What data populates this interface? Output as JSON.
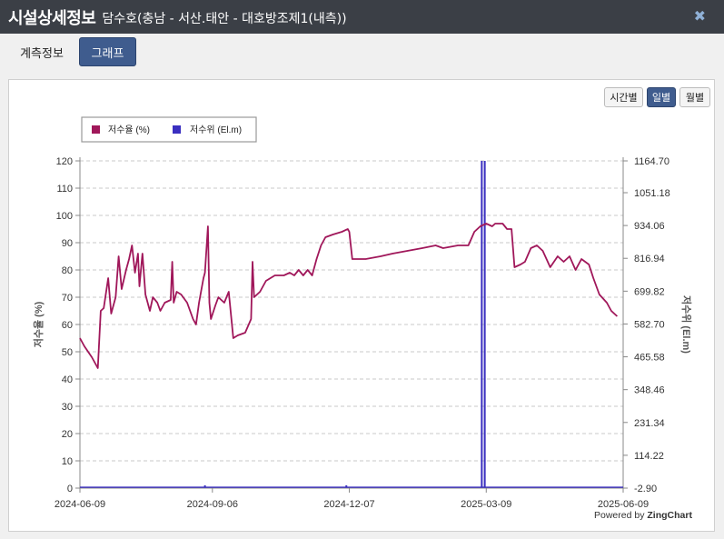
{
  "window": {
    "title": "시설상세정보",
    "subtitle": "담수호(충남 - 서산.태안 - 대호방조제1(내측))",
    "close_icon": "close-icon"
  },
  "tabs": [
    {
      "label": "계측정보",
      "active": false
    },
    {
      "label": "그래프",
      "active": true
    }
  ],
  "period_buttons": [
    {
      "label": "시간별",
      "active": false
    },
    {
      "label": "일별",
      "active": true
    },
    {
      "label": "월별",
      "active": false
    }
  ],
  "credit": {
    "prefix": "Powered by ",
    "brand": "ZingChart"
  },
  "colors": {
    "rate": "#a0175a",
    "level": "#3a2fc0"
  },
  "chart_data": {
    "type": "line",
    "legend": {
      "placement": "top-left",
      "items": [
        "저수율 (%)",
        "저수위 (El.m)"
      ]
    },
    "y_left": {
      "label": "저수율 (%)",
      "min": 0,
      "max": 120,
      "ticks": [
        "0",
        "10",
        "20",
        "30",
        "40",
        "50",
        "60",
        "70",
        "80",
        "90",
        "100",
        "110",
        "120"
      ]
    },
    "y_right": {
      "label": "저수위 (El.m)",
      "min": -2.9,
      "max": 1164.7,
      "ticks": [
        "-2.90",
        "114.22",
        "231.34",
        "348.46",
        "465.58",
        "582.70",
        "699.82",
        "816.94",
        "934.06",
        "1051.18",
        "1164.70"
      ]
    },
    "x_ticks": [
      "2024-06-09",
      "2024-09-06",
      "2024-12-07",
      "2025-03-09",
      "2025-06-09"
    ],
    "x_range": [
      "2024-06-09",
      "2025-06-09"
    ],
    "grid": true,
    "series": [
      {
        "name": "저수율 (%)",
        "axis": "left",
        "points": [
          [
            "2024-06-09",
            55
          ],
          [
            "2024-06-12",
            52
          ],
          [
            "2024-06-17",
            48
          ],
          [
            "2024-06-21",
            44
          ],
          [
            "2024-06-23",
            65
          ],
          [
            "2024-06-25",
            66
          ],
          [
            "2024-06-28",
            77
          ],
          [
            "2024-06-30",
            64
          ],
          [
            "2024-07-03",
            70
          ],
          [
            "2024-07-05",
            85
          ],
          [
            "2024-07-07",
            73
          ],
          [
            "2024-07-10",
            80
          ],
          [
            "2024-07-12",
            84
          ],
          [
            "2024-07-14",
            89
          ],
          [
            "2024-07-16",
            79
          ],
          [
            "2024-07-18",
            86
          ],
          [
            "2024-07-19",
            74
          ],
          [
            "2024-07-21",
            86
          ],
          [
            "2024-07-23",
            71
          ],
          [
            "2024-07-26",
            65
          ],
          [
            "2024-07-28",
            70
          ],
          [
            "2024-07-31",
            68
          ],
          [
            "2024-08-02",
            65
          ],
          [
            "2024-08-05",
            68
          ],
          [
            "2024-08-09",
            69
          ],
          [
            "2024-08-10",
            83
          ],
          [
            "2024-08-11",
            68
          ],
          [
            "2024-08-13",
            72
          ],
          [
            "2024-08-16",
            71
          ],
          [
            "2024-08-20",
            68
          ],
          [
            "2024-08-24",
            62
          ],
          [
            "2024-08-26",
            60
          ],
          [
            "2024-08-28",
            68
          ],
          [
            "2024-08-31",
            77
          ],
          [
            "2024-09-01",
            79
          ],
          [
            "2024-09-03",
            96
          ],
          [
            "2024-09-04",
            68
          ],
          [
            "2024-09-05",
            62
          ],
          [
            "2024-09-08",
            67
          ],
          [
            "2024-09-10",
            70
          ],
          [
            "2024-09-12",
            69
          ],
          [
            "2024-09-14",
            68
          ],
          [
            "2024-09-17",
            72
          ],
          [
            "2024-09-20",
            55
          ],
          [
            "2024-09-23",
            56
          ],
          [
            "2024-09-28",
            57
          ],
          [
            "2024-10-02",
            62
          ],
          [
            "2024-10-03",
            83
          ],
          [
            "2024-10-04",
            70
          ],
          [
            "2024-10-08",
            72
          ],
          [
            "2024-10-12",
            76
          ],
          [
            "2024-10-18",
            78
          ],
          [
            "2024-10-24",
            78
          ],
          [
            "2024-10-28",
            79
          ],
          [
            "2024-10-31",
            78
          ],
          [
            "2024-11-03",
            80
          ],
          [
            "2024-11-06",
            78
          ],
          [
            "2024-11-09",
            80
          ],
          [
            "2024-11-12",
            78
          ],
          [
            "2024-11-15",
            84
          ],
          [
            "2024-11-18",
            89
          ],
          [
            "2024-11-21",
            92
          ],
          [
            "2024-11-26",
            93
          ],
          [
            "2024-12-02",
            94
          ],
          [
            "2024-12-06",
            95
          ],
          [
            "2024-12-07",
            94
          ],
          [
            "2024-12-09",
            84
          ],
          [
            "2024-12-18",
            84
          ],
          [
            "2024-12-28",
            85
          ],
          [
            "2025-01-05",
            86
          ],
          [
            "2025-01-15",
            87
          ],
          [
            "2025-01-25",
            88
          ],
          [
            "2025-02-03",
            89
          ],
          [
            "2025-02-08",
            88
          ],
          [
            "2025-02-18",
            89
          ],
          [
            "2025-02-25",
            89
          ],
          [
            "2025-03-01",
            94
          ],
          [
            "2025-03-05",
            96
          ],
          [
            "2025-03-09",
            97
          ],
          [
            "2025-03-13",
            96
          ],
          [
            "2025-03-15",
            97
          ],
          [
            "2025-03-20",
            97
          ],
          [
            "2025-03-23",
            95
          ],
          [
            "2025-03-26",
            95
          ],
          [
            "2025-03-28",
            81
          ],
          [
            "2025-04-01",
            82
          ],
          [
            "2025-04-04",
            83
          ],
          [
            "2025-04-08",
            88
          ],
          [
            "2025-04-12",
            89
          ],
          [
            "2025-04-16",
            87
          ],
          [
            "2025-04-21",
            81
          ],
          [
            "2025-04-26",
            85
          ],
          [
            "2025-04-30",
            83
          ],
          [
            "2025-05-04",
            85
          ],
          [
            "2025-05-08",
            80
          ],
          [
            "2025-05-12",
            84
          ],
          [
            "2025-05-17",
            82
          ],
          [
            "2025-05-20",
            77
          ],
          [
            "2025-05-24",
            71
          ],
          [
            "2025-05-29",
            68
          ],
          [
            "2025-06-01",
            65
          ],
          [
            "2025-06-05",
            63
          ]
        ]
      },
      {
        "name": "저수위 (El.m)",
        "axis": "right",
        "baseline": 0,
        "spikes": [
          {
            "date": "2024-09-01",
            "value": 7
          },
          {
            "date": "2024-12-05",
            "value": 7
          },
          {
            "date": "2025-03-06",
            "value": 1164.7
          },
          {
            "date": "2025-03-08",
            "value": 1164.7
          }
        ]
      }
    ]
  }
}
